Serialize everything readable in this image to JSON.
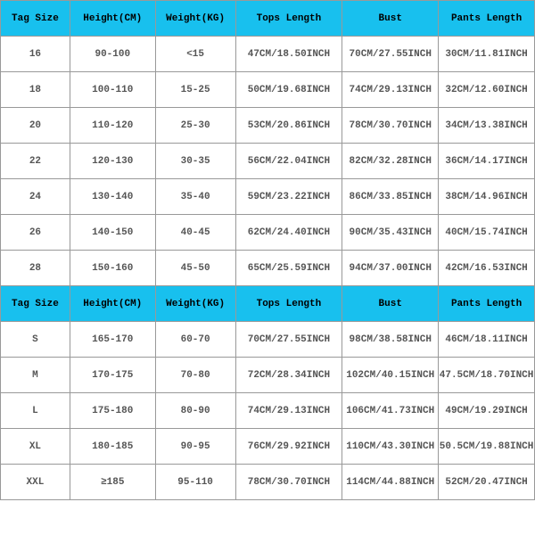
{
  "header_bg": "#18c0ee",
  "header_text": "#000000",
  "cell_text": "#555555",
  "border": "#999999",
  "columns": [
    "Tag Size",
    "Height(CM)",
    "Weight(KG)",
    "Tops Length",
    "Bust",
    "Pants Length"
  ],
  "section1_rows": [
    [
      "16",
      "90-100",
      "<15",
      "47CM/18.50INCH",
      "70CM/27.55INCH",
      "30CM/11.81INCH"
    ],
    [
      "18",
      "100-110",
      "15-25",
      "50CM/19.68INCH",
      "74CM/29.13INCH",
      "32CM/12.60INCH"
    ],
    [
      "20",
      "110-120",
      "25-30",
      "53CM/20.86INCH",
      "78CM/30.70INCH",
      "34CM/13.38INCH"
    ],
    [
      "22",
      "120-130",
      "30-35",
      "56CM/22.04INCH",
      "82CM/32.28INCH",
      "36CM/14.17INCH"
    ],
    [
      "24",
      "130-140",
      "35-40",
      "59CM/23.22INCH",
      "86CM/33.85INCH",
      "38CM/14.96INCH"
    ],
    [
      "26",
      "140-150",
      "40-45",
      "62CM/24.40INCH",
      "90CM/35.43INCH",
      "40CM/15.74INCH"
    ],
    [
      "28",
      "150-160",
      "45-50",
      "65CM/25.59INCH",
      "94CM/37.00INCH",
      "42CM/16.53INCH"
    ]
  ],
  "section2_rows": [
    [
      "S",
      "165-170",
      "60-70",
      "70CM/27.55INCH",
      "98CM/38.58INCH",
      "46CM/18.11INCH"
    ],
    [
      "M",
      "170-175",
      "70-80",
      "72CM/28.34INCH",
      "102CM/40.15INCH",
      "47.5CM/18.70INCH"
    ],
    [
      "L",
      "175-180",
      "80-90",
      "74CM/29.13INCH",
      "106CM/41.73INCH",
      "49CM/19.29INCH"
    ],
    [
      "XL",
      "180-185",
      "90-95",
      "76CM/29.92INCH",
      "110CM/43.30INCH",
      "50.5CM/19.88INCH"
    ],
    [
      "XXL",
      "≥185",
      "95-110",
      "78CM/30.70INCH",
      "114CM/44.88INCH",
      "52CM/20.47INCH"
    ]
  ]
}
